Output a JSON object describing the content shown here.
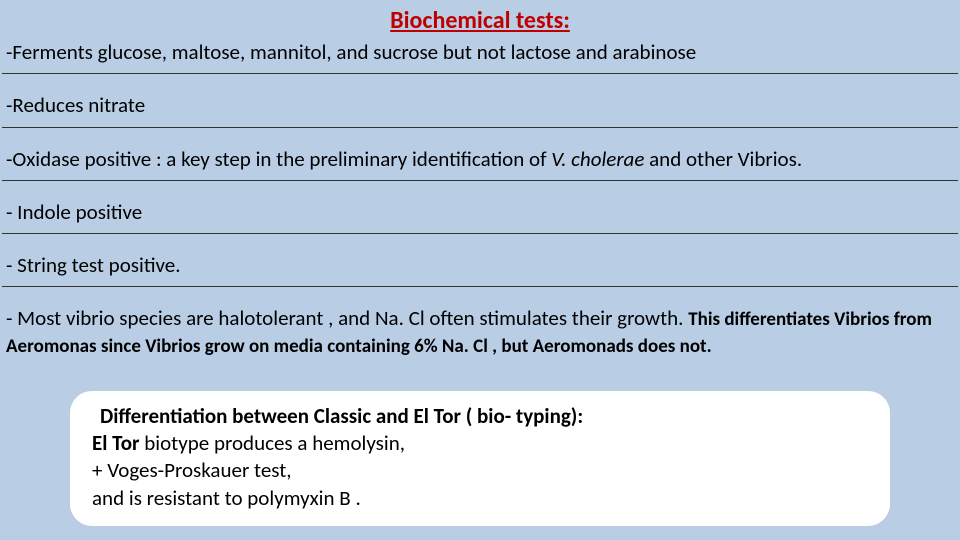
{
  "colors": {
    "background": "#b9cde5",
    "title": "#c00000",
    "body_text": "#000000",
    "callout_bg": "#ffffff",
    "rule": "#333333"
  },
  "title": "Biochemical tests:",
  "lines": {
    "l1": "-Ferments glucose, maltose, mannitol, and sucrose but not lactose and arabinose",
    "l2": "-Reduces nitrate",
    "l3a": "-Oxidase positive : a key step in the preliminary identification of ",
    "l3b": "V. cholerae",
    "l3c": " and other Vibrios.",
    "l4": "-   Indole positive",
    "l5": "-   String test positive.",
    "l6a": "-   Most vibrio species are halotolerant , and Na. Cl often stimulates their growth. ",
    "l6b": "This differentiates Vibrios from Aeromonas  since Vibrios grow on media containing 6% Na. Cl , but Aeromonads does not."
  },
  "callout": {
    "header": "Differentiation between Classic and El Tor ( bio- typing):",
    "row1a": "El Tor",
    "row1b": " biotype produces a hemolysin,",
    "row2": "+ Voges-Proskauer test,",
    "row3": "and is resistant to polymyxin B ."
  },
  "typography": {
    "title_fontsize": 24,
    "body_fontsize": 21,
    "small_fontsize": 19,
    "font_family": "Calibri"
  }
}
